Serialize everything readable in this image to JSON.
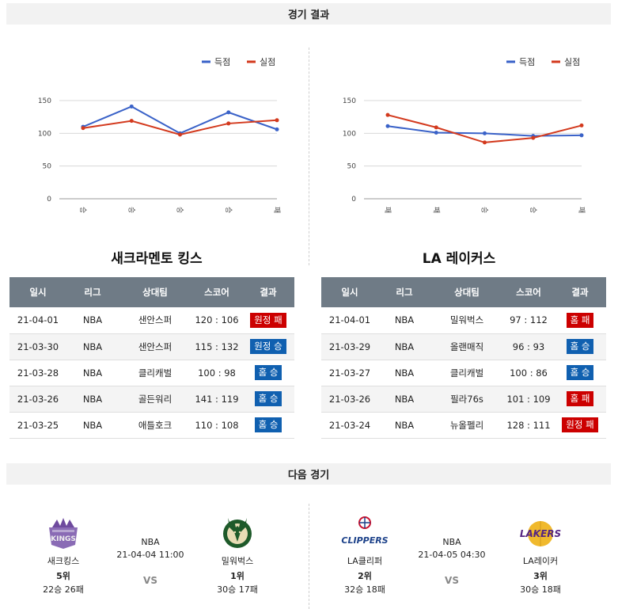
{
  "sections": {
    "results_title": "경기 결과",
    "next_title": "다음 경기"
  },
  "legend": {
    "scored": "득점",
    "conceded": "실점"
  },
  "colors": {
    "scored": "#3a62c8",
    "conceded": "#d33a1e",
    "win": "#1060b0",
    "loss": "#cc0000",
    "header": "#6f7b86"
  },
  "chart_data": [
    {
      "type": "line",
      "categories": [
        "승",
        "승",
        "승",
        "승",
        "패"
      ],
      "ylim": [
        0,
        150
      ],
      "yticks": [
        0,
        50,
        100,
        150
      ],
      "series": [
        {
          "name": "득점",
          "values": [
            110,
            141,
            100,
            132,
            106
          ]
        },
        {
          "name": "실점",
          "values": [
            108,
            119,
            98,
            115,
            120
          ]
        }
      ],
      "legend_position": "top-right"
    },
    {
      "type": "line",
      "categories": [
        "패",
        "패",
        "승",
        "승",
        "패"
      ],
      "ylim": [
        0,
        150
      ],
      "yticks": [
        0,
        50,
        100,
        150
      ],
      "series": [
        {
          "name": "득점",
          "values": [
            111,
            101,
            100,
            96,
            97
          ]
        },
        {
          "name": "실점",
          "values": [
            128,
            109,
            86,
            93,
            112
          ]
        }
      ],
      "legend_position": "top-right"
    }
  ],
  "table_headers": [
    "일시",
    "리그",
    "상대팀",
    "스코어",
    "결과"
  ],
  "teams": [
    {
      "title": "새크라멘토 킹스",
      "rows": [
        {
          "date": "21-04-01",
          "league": "NBA",
          "opponent": "샌안스퍼",
          "score": "120 : 106",
          "result": "원정 패",
          "win": false
        },
        {
          "date": "21-03-30",
          "league": "NBA",
          "opponent": "샌안스퍼",
          "score": "115 : 132",
          "result": "원정 승",
          "win": true
        },
        {
          "date": "21-03-28",
          "league": "NBA",
          "opponent": "클리캐벌",
          "score": "100 : 98",
          "result": "홈 승",
          "win": true
        },
        {
          "date": "21-03-26",
          "league": "NBA",
          "opponent": "골든워리",
          "score": "141 : 119",
          "result": "홈 승",
          "win": true
        },
        {
          "date": "21-03-25",
          "league": "NBA",
          "opponent": "애틀호크",
          "score": "110 : 108",
          "result": "홈 승",
          "win": true
        }
      ]
    },
    {
      "title": "LA 레이커스",
      "rows": [
        {
          "date": "21-04-01",
          "league": "NBA",
          "opponent": "밀워벅스",
          "score": "97 : 112",
          "result": "홈 패",
          "win": false
        },
        {
          "date": "21-03-29",
          "league": "NBA",
          "opponent": "올랜매직",
          "score": "96 : 93",
          "result": "홈 승",
          "win": true
        },
        {
          "date": "21-03-27",
          "league": "NBA",
          "opponent": "클리캐벌",
          "score": "100 : 86",
          "result": "홈 승",
          "win": true
        },
        {
          "date": "21-03-26",
          "league": "NBA",
          "opponent": "필라76s",
          "score": "101 : 109",
          "result": "홈 패",
          "win": false
        },
        {
          "date": "21-03-24",
          "league": "NBA",
          "opponent": "뉴올펠리",
          "score": "128 : 111",
          "result": "원정 패",
          "win": false
        }
      ]
    }
  ],
  "next_matches": [
    {
      "league": "NBA",
      "datetime": "21-04-04 11:00",
      "vs": "VS",
      "home": {
        "name": "새크킹스",
        "rank": "5위",
        "record": "22승 26패",
        "logo": "kings-logo"
      },
      "away": {
        "name": "밀워벅스",
        "rank": "1위",
        "record": "30승 17패",
        "logo": "bucks-logo"
      }
    },
    {
      "league": "NBA",
      "datetime": "21-04-05 04:30",
      "vs": "VS",
      "home": {
        "name": "LA클리퍼",
        "rank": "2위",
        "record": "32승 18패",
        "logo": "clippers-logo",
        "logo_text": "CLIPPERS"
      },
      "away": {
        "name": "LA레이커",
        "rank": "3위",
        "record": "30승 18패",
        "logo": "lakers-logo",
        "logo_text": "LAKERS"
      }
    }
  ]
}
